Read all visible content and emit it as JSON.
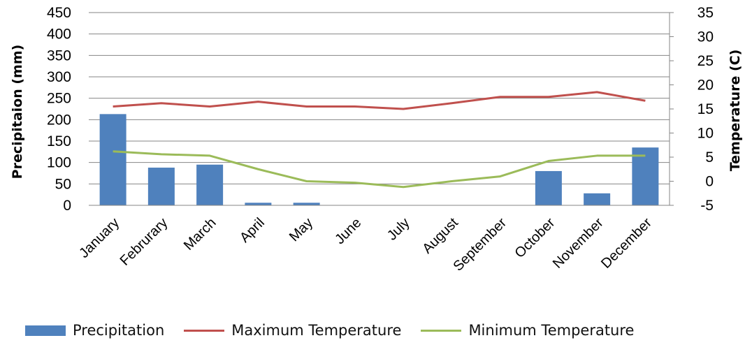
{
  "chart_data": {
    "type": "bar-line-combo",
    "categories": [
      "January",
      "Februrary",
      "March",
      "April",
      "May",
      "June",
      "July",
      "August",
      "September",
      "October",
      "November",
      "December"
    ],
    "series": [
      {
        "name": "Precipitation",
        "type": "bar",
        "axis": "left",
        "color": "#4f81bd",
        "values": [
          213,
          88,
          95,
          6,
          6,
          0,
          0,
          0,
          0,
          80,
          28,
          135
        ]
      },
      {
        "name": "Maximum Temperature",
        "type": "line",
        "axis": "right",
        "color": "#c0504d",
        "values": [
          15.5,
          16.2,
          15.5,
          16.5,
          15.5,
          15.5,
          15.0,
          16.2,
          17.5,
          17.5,
          18.5,
          16.7
        ]
      },
      {
        "name": "Minimum Temperature",
        "type": "line",
        "axis": "right",
        "color": "#9bbb59",
        "values": [
          6.2,
          5.6,
          5.3,
          2.5,
          0,
          -0.3,
          -1.2,
          0,
          1,
          4.2,
          5.3,
          5.3
        ]
      }
    ],
    "ylabel_left": "Precipitaion  (mm)",
    "ylabel_right": "Temperature (C)",
    "ylim_left": [
      0,
      450
    ],
    "yticks_left": [
      "0",
      "50",
      "100",
      "150",
      "200",
      "250",
      "300",
      "350",
      "400",
      "450"
    ],
    "ylim_right": [
      -5,
      35
    ],
    "yticks_right": [
      "-5",
      "0",
      "5",
      "10",
      "15",
      "20",
      "25",
      "30",
      "35"
    ],
    "grid": true,
    "legend_position": "bottom"
  }
}
